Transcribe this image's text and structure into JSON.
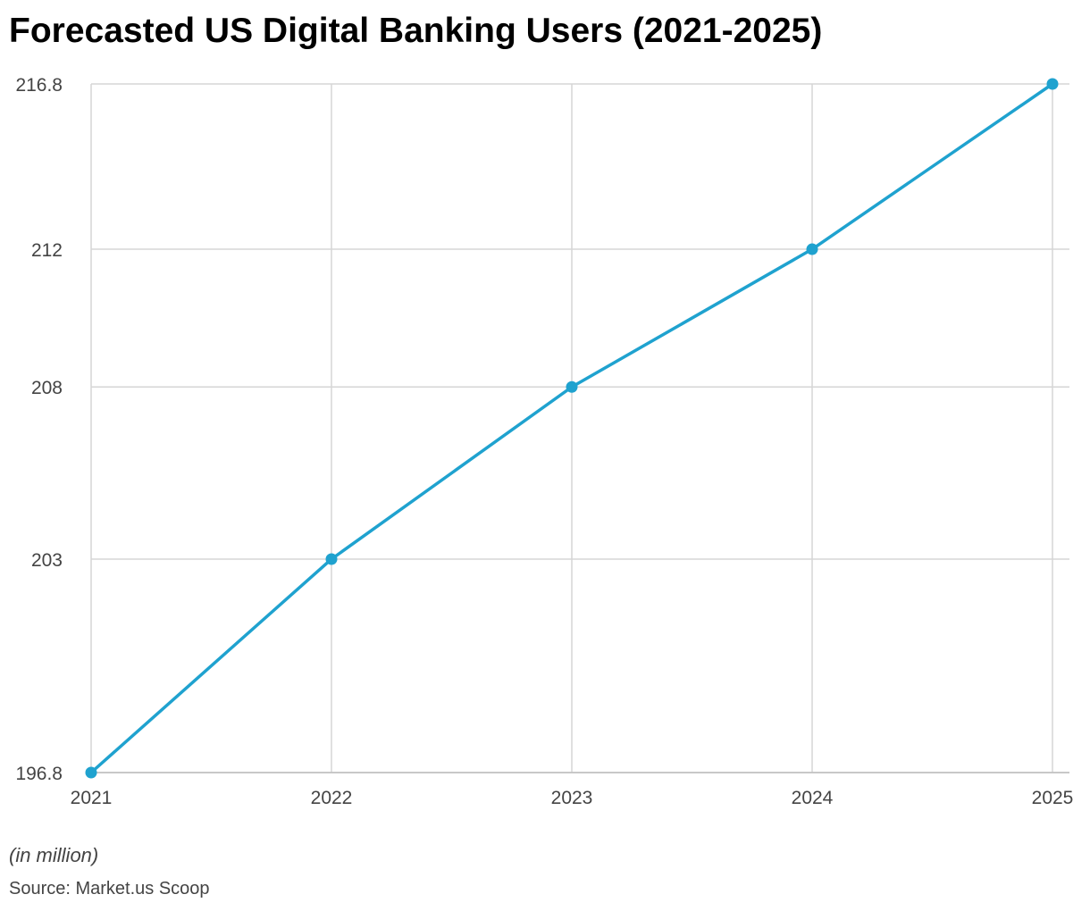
{
  "chart_data": {
    "type": "line",
    "title": "Forecasted US Digital Banking Users (2021-2025)",
    "xlabel": "",
    "ylabel": "",
    "categories": [
      "2021",
      "2022",
      "2023",
      "2024",
      "2025"
    ],
    "x_tick_labels": [
      "2021",
      "2022",
      "2023",
      "2024",
      "2025"
    ],
    "y_tick_labels": [
      "196.8",
      "203",
      "208",
      "212",
      "216.8"
    ],
    "y_ticks": [
      196.8,
      203,
      208,
      212,
      216.8
    ],
    "ylim": [
      196.8,
      216.8
    ],
    "series": [
      {
        "values": [
          196.8,
          203,
          208,
          212,
          216.8
        ]
      }
    ],
    "grid": true,
    "legend": "none",
    "line_color": "#1fa2cf",
    "grid_color": "#d6d6d6",
    "note": "(in million)",
    "source": "Source: Market.us Scoop"
  }
}
